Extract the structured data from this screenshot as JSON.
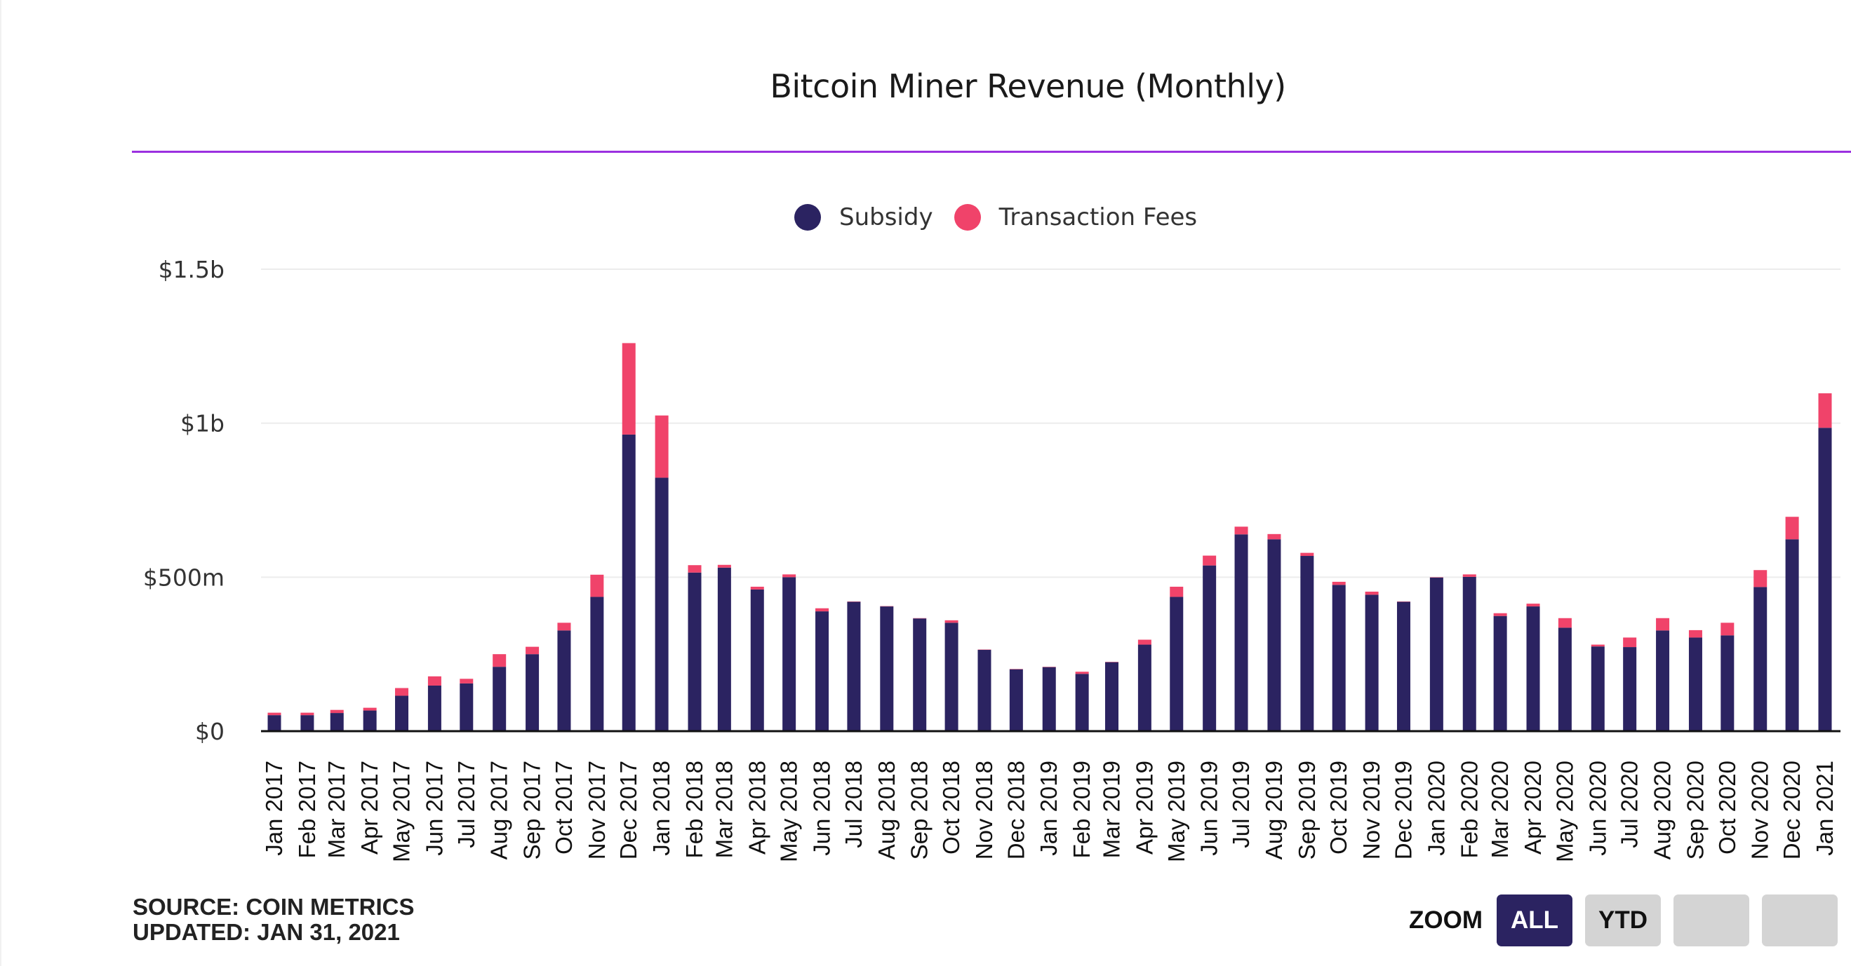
{
  "colors": {
    "subsidy": "#2b2361",
    "fees": "#f0436a",
    "rule": "#9b30e0",
    "grid": "#ececec",
    "axis": "#111111"
  },
  "legend": [
    {
      "label": "Subsidy",
      "color": "#2b2361"
    },
    {
      "label": "Transaction Fees",
      "color": "#f0436a"
    }
  ],
  "footer": {
    "source": "SOURCE: COIN METRICS",
    "updated": "UPDATED: JAN 31, 2021"
  },
  "zoom": {
    "label": "ZOOM",
    "buttons": [
      {
        "label": "ALL",
        "active": true
      },
      {
        "label": "YTD",
        "active": false
      },
      {
        "label": "",
        "active": false
      },
      {
        "label": "",
        "active": false
      }
    ]
  },
  "chart_data": {
    "type": "bar",
    "stacked": true,
    "title": "Bitcoin Miner Revenue (Monthly)",
    "xlabel": "",
    "ylabel": "",
    "units": "USD millions",
    "ylim": [
      0,
      1500
    ],
    "yticks": [
      0,
      500,
      1000,
      1500
    ],
    "ytick_labels": [
      "$0",
      "$500m",
      "$1b",
      "$1.5b"
    ],
    "grid": true,
    "legend_position": "top-center",
    "categories": [
      "Jan 2017",
      "Feb 2017",
      "Mar 2017",
      "Apr 2017",
      "May 2017",
      "Jun 2017",
      "Jul 2017",
      "Aug 2017",
      "Sep 2017",
      "Oct 2017",
      "Nov 2017",
      "Dec 2017",
      "Jan 2018",
      "Feb 2018",
      "Mar 2018",
      "Apr 2018",
      "May 2018",
      "Jun 2018",
      "Jul 2018",
      "Aug 2018",
      "Sep 2018",
      "Oct 2018",
      "Nov 2018",
      "Dec 2018",
      "Jan 2019",
      "Feb 2019",
      "Mar 2019",
      "Apr 2019",
      "May 2019",
      "Jun 2019",
      "Jul 2019",
      "Aug 2019",
      "Sep 2019",
      "Oct 2019",
      "Nov 2019",
      "Dec 2019",
      "Jan 2020",
      "Feb 2020",
      "Mar 2020",
      "Apr 2020",
      "May 2020",
      "Jun 2020",
      "Jul 2020",
      "Aug 2020",
      "Sep 2020",
      "Oct 2020",
      "Nov 2020",
      "Dec 2020",
      "Jan 2021"
    ],
    "series": [
      {
        "name": "Subsidy",
        "values": [
          52,
          52,
          59,
          67,
          115,
          148,
          155,
          209,
          250,
          327,
          436,
          963,
          823,
          515,
          531,
          460,
          500,
          389,
          420,
          405,
          366,
          352,
          264,
          201,
          208,
          186,
          224,
          281,
          436,
          538,
          639,
          623,
          569,
          475,
          443,
          420,
          499,
          501,
          374,
          405,
          336,
          275,
          273,
          327,
          304,
          311,
          468,
          623,
          985
        ]
      },
      {
        "name": "Transaction Fees",
        "values": [
          8,
          8,
          10,
          9,
          25,
          30,
          15,
          41,
          24,
          25,
          72,
          297,
          202,
          24,
          9,
          9,
          9,
          10,
          1,
          1,
          1,
          8,
          1,
          1,
          1,
          7,
          1,
          16,
          33,
          32,
          25,
          17,
          10,
          10,
          10,
          1,
          1,
          8,
          9,
          9,
          31,
          6,
          31,
          40,
          24,
          41,
          55,
          73,
          112
        ]
      }
    ]
  }
}
